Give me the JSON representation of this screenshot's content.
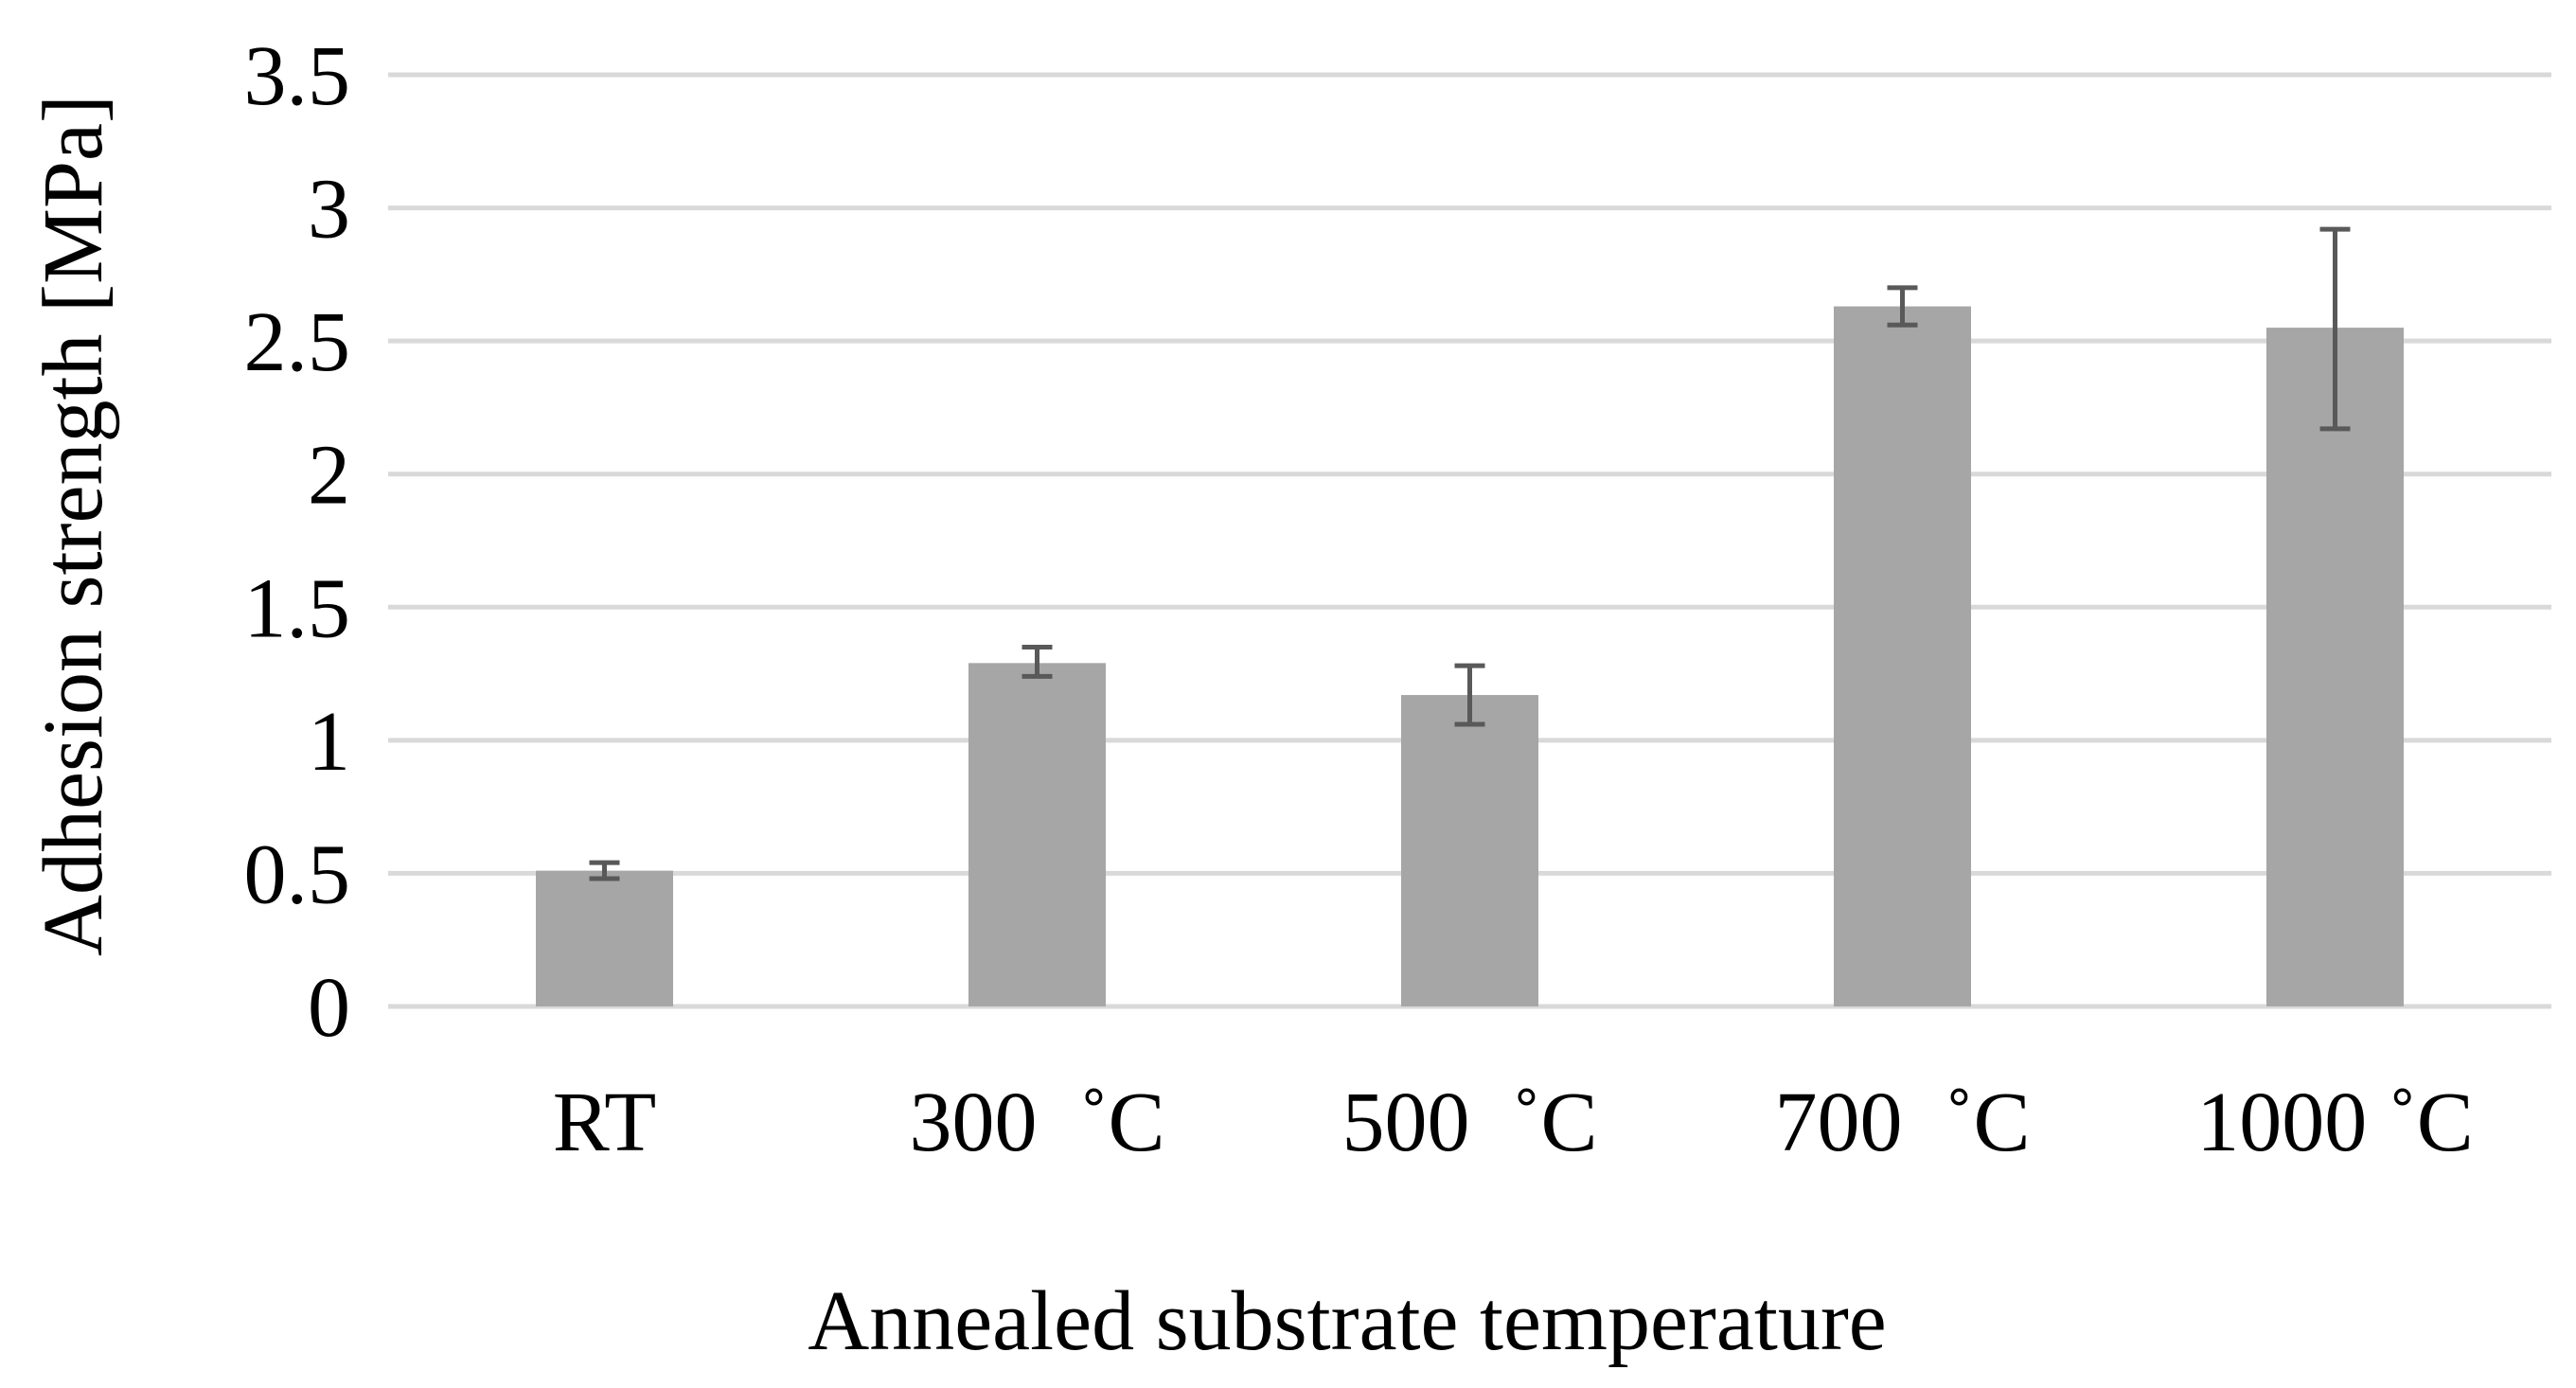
{
  "chart_data": {
    "type": "bar",
    "title": "",
    "xlabel": "Annealed substrate temperature",
    "ylabel": "Adhesion strength [MPa]",
    "categories": [
      "RT",
      "300  ˚C",
      "500  ˚C",
      "700  ˚C",
      "1000 ˚C"
    ],
    "values": [
      0.51,
      1.29,
      1.17,
      2.63,
      2.55
    ],
    "error_low": [
      0.48,
      1.24,
      1.06,
      2.56,
      2.17
    ],
    "error_high": [
      0.54,
      1.35,
      1.28,
      2.7,
      2.92
    ],
    "ylim": [
      0,
      3.5
    ],
    "yticks": [
      0,
      0.5,
      1,
      1.5,
      2,
      2.5,
      3,
      3.5
    ],
    "ytick_labels": [
      "0",
      "0.5",
      "1",
      "1.5",
      "2",
      "2.5",
      "3",
      "3.5"
    ],
    "grid": true,
    "legend": "none",
    "colors": {
      "bar": "#a6a6a6",
      "error": "#595959",
      "grid": "#d9d9d9"
    }
  }
}
